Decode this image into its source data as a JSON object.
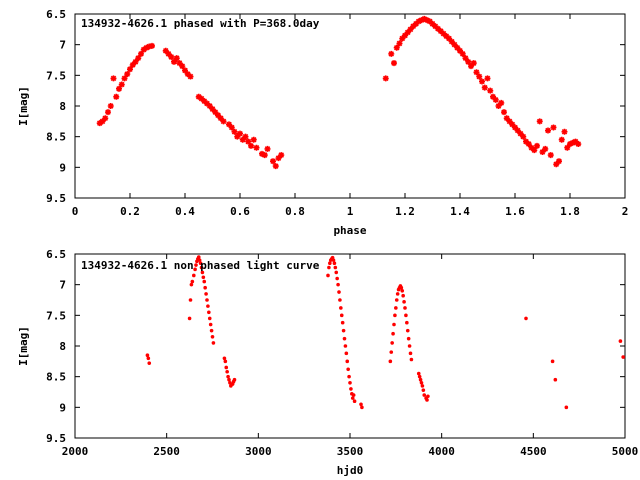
{
  "colors": {
    "points": "#ff0000",
    "axes": "#000000",
    "background": "#ffffff"
  },
  "chart_data": [
    {
      "type": "scatter",
      "title": "134932-4626.1 phased with P=368.0day",
      "xlabel": "phase",
      "ylabel": "I[mag]",
      "xlim": [
        0,
        2
      ],
      "ylim": [
        6.5,
        9.5
      ],
      "y_inverted": true,
      "grid": false,
      "marker": "star",
      "x_ticks": [
        0,
        0.2,
        0.4,
        0.6,
        0.8,
        1,
        1.2,
        1.4,
        1.6,
        1.8,
        2
      ],
      "x_tick_labels": [
        "0",
        "0.2",
        "0.4",
        "0.6",
        "0.8",
        "1",
        "1.2",
        "1.4",
        "1.6",
        "1.8",
        "2"
      ],
      "y_ticks": [
        6.5,
        7,
        7.5,
        8,
        8.5,
        9,
        9.5
      ],
      "y_tick_labels": [
        "6.5",
        "7",
        "7.5",
        "8",
        "8.5",
        "9",
        "9.5"
      ],
      "series": [
        {
          "points": [
            [
              0.09,
              8.28
            ],
            [
              0.1,
              8.25
            ],
            [
              0.11,
              8.2
            ],
            [
              0.12,
              8.1
            ],
            [
              0.13,
              8.0
            ],
            [
              0.14,
              7.55
            ],
            [
              0.15,
              7.85
            ],
            [
              0.16,
              7.72
            ],
            [
              0.17,
              7.65
            ],
            [
              0.18,
              7.55
            ],
            [
              0.19,
              7.48
            ],
            [
              0.2,
              7.4
            ],
            [
              0.21,
              7.33
            ],
            [
              0.22,
              7.28
            ],
            [
              0.23,
              7.22
            ],
            [
              0.24,
              7.15
            ],
            [
              0.25,
              7.08
            ],
            [
              0.26,
              7.05
            ],
            [
              0.27,
              7.03
            ],
            [
              0.28,
              7.02
            ],
            [
              0.33,
              7.1
            ],
            [
              0.34,
              7.15
            ],
            [
              0.35,
              7.2
            ],
            [
              0.36,
              7.28
            ],
            [
              0.37,
              7.22
            ],
            [
              0.38,
              7.3
            ],
            [
              0.39,
              7.35
            ],
            [
              0.4,
              7.42
            ],
            [
              0.41,
              7.48
            ],
            [
              0.42,
              7.52
            ],
            [
              0.45,
              7.85
            ],
            [
              0.46,
              7.88
            ],
            [
              0.47,
              7.92
            ],
            [
              0.48,
              7.96
            ],
            [
              0.49,
              8.0
            ],
            [
              0.5,
              8.05
            ],
            [
              0.51,
              8.1
            ],
            [
              0.52,
              8.15
            ],
            [
              0.53,
              8.2
            ],
            [
              0.54,
              8.25
            ],
            [
              0.56,
              8.3
            ],
            [
              0.57,
              8.35
            ],
            [
              0.58,
              8.42
            ],
            [
              0.59,
              8.5
            ],
            [
              0.6,
              8.45
            ],
            [
              0.61,
              8.55
            ],
            [
              0.62,
              8.5
            ],
            [
              0.63,
              8.58
            ],
            [
              0.64,
              8.65
            ],
            [
              0.65,
              8.55
            ],
            [
              0.66,
              8.68
            ],
            [
              0.68,
              8.78
            ],
            [
              0.69,
              8.8
            ],
            [
              0.7,
              8.7
            ],
            [
              0.72,
              8.9
            ],
            [
              0.73,
              8.98
            ],
            [
              0.74,
              8.85
            ],
            [
              0.75,
              8.8
            ]
          ]
        },
        {
          "points": [
            [
              1.13,
              7.55
            ],
            [
              1.15,
              7.15
            ],
            [
              1.16,
              7.3
            ],
            [
              1.17,
              7.05
            ],
            [
              1.18,
              6.98
            ],
            [
              1.19,
              6.9
            ],
            [
              1.2,
              6.85
            ],
            [
              1.21,
              6.8
            ],
            [
              1.22,
              6.75
            ],
            [
              1.23,
              6.7
            ],
            [
              1.24,
              6.66
            ],
            [
              1.25,
              6.62
            ],
            [
              1.26,
              6.6
            ],
            [
              1.27,
              6.58
            ],
            [
              1.28,
              6.6
            ],
            [
              1.29,
              6.62
            ],
            [
              1.3,
              6.66
            ],
            [
              1.31,
              6.7
            ],
            [
              1.32,
              6.74
            ],
            [
              1.33,
              6.78
            ],
            [
              1.34,
              6.82
            ],
            [
              1.35,
              6.86
            ],
            [
              1.36,
              6.9
            ],
            [
              1.37,
              6.95
            ],
            [
              1.38,
              7.0
            ],
            [
              1.39,
              7.05
            ],
            [
              1.4,
              7.1
            ],
            [
              1.41,
              7.15
            ],
            [
              1.42,
              7.22
            ],
            [
              1.43,
              7.28
            ],
            [
              1.44,
              7.35
            ],
            [
              1.45,
              7.3
            ],
            [
              1.46,
              7.45
            ],
            [
              1.47,
              7.52
            ],
            [
              1.48,
              7.6
            ],
            [
              1.49,
              7.7
            ],
            [
              1.5,
              7.55
            ],
            [
              1.51,
              7.75
            ],
            [
              1.52,
              7.85
            ],
            [
              1.53,
              7.9
            ],
            [
              1.54,
              8.0
            ],
            [
              1.55,
              7.95
            ],
            [
              1.56,
              8.1
            ],
            [
              1.57,
              8.2
            ],
            [
              1.58,
              8.25
            ],
            [
              1.59,
              8.3
            ],
            [
              1.6,
              8.35
            ],
            [
              1.61,
              8.4
            ],
            [
              1.62,
              8.45
            ],
            [
              1.63,
              8.5
            ],
            [
              1.64,
              8.58
            ],
            [
              1.65,
              8.62
            ],
            [
              1.66,
              8.68
            ],
            [
              1.67,
              8.72
            ],
            [
              1.68,
              8.65
            ],
            [
              1.69,
              8.25
            ],
            [
              1.7,
              8.75
            ],
            [
              1.71,
              8.7
            ],
            [
              1.72,
              8.4
            ],
            [
              1.73,
              8.8
            ],
            [
              1.74,
              8.35
            ],
            [
              1.75,
              8.95
            ],
            [
              1.76,
              8.9
            ],
            [
              1.77,
              8.55
            ],
            [
              1.78,
              8.42
            ],
            [
              1.79,
              8.68
            ],
            [
              1.8,
              8.62
            ],
            [
              1.81,
              8.6
            ],
            [
              1.82,
              8.58
            ],
            [
              1.83,
              8.62
            ]
          ]
        }
      ]
    },
    {
      "type": "scatter",
      "title": "134932-4626.1 non phased light curve",
      "xlabel": "hjd0",
      "ylabel": "I[mag]",
      "xlim": [
        2000,
        5000
      ],
      "ylim": [
        6.5,
        9.5
      ],
      "y_inverted": true,
      "grid": false,
      "marker": "dot",
      "x_ticks": [
        2000,
        2500,
        3000,
        3500,
        4000,
        4500,
        5000
      ],
      "x_tick_labels": [
        "2000",
        "2500",
        "3000",
        "3500",
        "4000",
        "4500",
        "5000"
      ],
      "y_ticks": [
        6.5,
        7,
        7.5,
        8,
        8.5,
        9,
        9.5
      ],
      "y_tick_labels": [
        "6.5",
        "7",
        "7.5",
        "8",
        "8.5",
        "9",
        "9.5"
      ],
      "series": [
        {
          "points": [
            [
              2395,
              8.15
            ],
            [
              2400,
              8.2
            ],
            [
              2405,
              8.28
            ],
            [
              2625,
              7.55
            ],
            [
              2630,
              7.25
            ],
            [
              2635,
              7.0
            ],
            [
              2640,
              6.95
            ],
            [
              2648,
              6.85
            ],
            [
              2655,
              6.75
            ],
            [
              2660,
              6.68
            ],
            [
              2665,
              6.62
            ],
            [
              2670,
              6.58
            ],
            [
              2675,
              6.55
            ],
            [
              2680,
              6.6
            ],
            [
              2685,
              6.65
            ],
            [
              2690,
              6.72
            ],
            [
              2695,
              6.8
            ],
            [
              2700,
              6.88
            ],
            [
              2705,
              6.95
            ],
            [
              2710,
              7.05
            ],
            [
              2715,
              7.15
            ],
            [
              2720,
              7.25
            ],
            [
              2725,
              7.35
            ],
            [
              2730,
              7.45
            ],
            [
              2735,
              7.55
            ],
            [
              2740,
              7.65
            ],
            [
              2745,
              7.75
            ],
            [
              2750,
              7.85
            ],
            [
              2755,
              7.95
            ],
            [
              2815,
              8.2
            ],
            [
              2820,
              8.25
            ],
            [
              2825,
              8.35
            ],
            [
              2830,
              8.42
            ],
            [
              2835,
              8.5
            ],
            [
              2840,
              8.55
            ],
            [
              2845,
              8.6
            ],
            [
              2850,
              8.65
            ],
            [
              2860,
              8.62
            ],
            [
              2865,
              8.58
            ],
            [
              2870,
              8.55
            ],
            [
              3380,
              6.85
            ],
            [
              3385,
              6.72
            ],
            [
              3390,
              6.65
            ],
            [
              3395,
              6.6
            ],
            [
              3400,
              6.58
            ],
            [
              3405,
              6.56
            ],
            [
              3410,
              6.6
            ],
            [
              3415,
              6.65
            ],
            [
              3420,
              6.72
            ],
            [
              3425,
              6.8
            ],
            [
              3430,
              6.9
            ],
            [
              3435,
              7.0
            ],
            [
              3440,
              7.12
            ],
            [
              3445,
              7.25
            ],
            [
              3450,
              7.38
            ],
            [
              3455,
              7.5
            ],
            [
              3460,
              7.62
            ],
            [
              3465,
              7.75
            ],
            [
              3470,
              7.88
            ],
            [
              3475,
              8.0
            ],
            [
              3480,
              8.12
            ],
            [
              3485,
              8.25
            ],
            [
              3490,
              8.38
            ],
            [
              3495,
              8.5
            ],
            [
              3500,
              8.6
            ],
            [
              3505,
              8.7
            ],
            [
              3510,
              8.78
            ],
            [
              3515,
              8.85
            ],
            [
              3520,
              8.8
            ],
            [
              3525,
              8.9
            ],
            [
              3560,
              8.95
            ],
            [
              3565,
              9.0
            ],
            [
              3720,
              8.25
            ],
            [
              3725,
              8.1
            ],
            [
              3730,
              7.95
            ],
            [
              3735,
              7.8
            ],
            [
              3740,
              7.65
            ],
            [
              3745,
              7.5
            ],
            [
              3750,
              7.38
            ],
            [
              3755,
              7.25
            ],
            [
              3760,
              7.15
            ],
            [
              3765,
              7.08
            ],
            [
              3770,
              7.05
            ],
            [
              3775,
              7.02
            ],
            [
              3780,
              7.05
            ],
            [
              3785,
              7.1
            ],
            [
              3790,
              7.18
            ],
            [
              3795,
              7.28
            ],
            [
              3800,
              7.38
            ],
            [
              3805,
              7.5
            ],
            [
              3810,
              7.62
            ],
            [
              3815,
              7.75
            ],
            [
              3820,
              7.88
            ],
            [
              3825,
              8.0
            ],
            [
              3830,
              8.12
            ],
            [
              3835,
              8.22
            ],
            [
              3875,
              8.45
            ],
            [
              3880,
              8.5
            ],
            [
              3885,
              8.55
            ],
            [
              3890,
              8.6
            ],
            [
              3895,
              8.65
            ],
            [
              3900,
              8.72
            ],
            [
              3905,
              8.8
            ],
            [
              3915,
              8.85
            ],
            [
              3920,
              8.88
            ],
            [
              3925,
              8.82
            ],
            [
              4460,
              7.55
            ],
            [
              4605,
              8.25
            ],
            [
              4620,
              8.55
            ],
            [
              4680,
              9.0
            ],
            [
              4975,
              7.92
            ],
            [
              4990,
              8.18
            ]
          ]
        }
      ]
    }
  ]
}
